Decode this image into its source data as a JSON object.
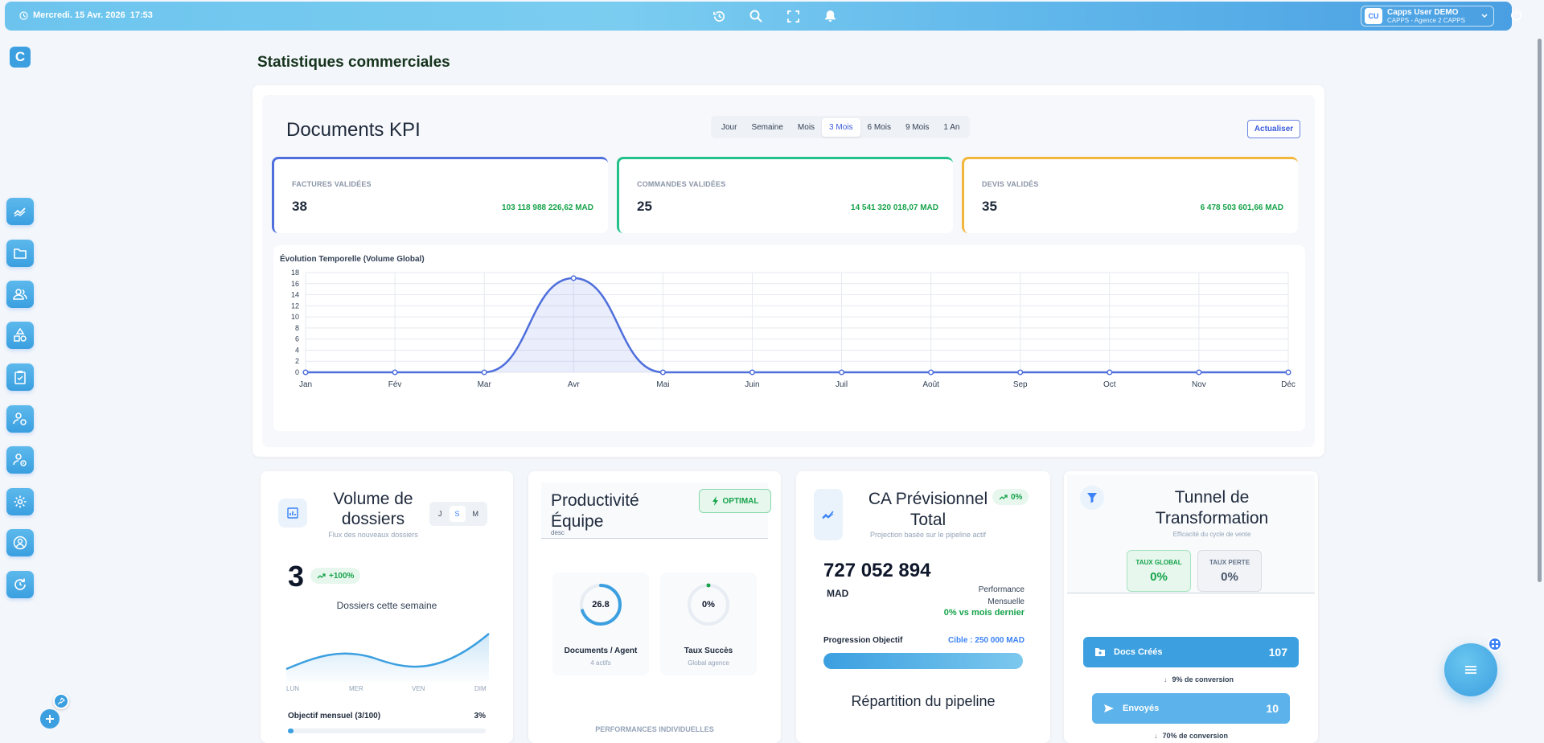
{
  "topbar": {
    "date": "Mercredi. 15 Avr. 2026",
    "time": "17:53",
    "icons": [
      "history-icon",
      "search-icon",
      "fullscreen-icon",
      "bell-icon"
    ],
    "user": {
      "initials": "CU",
      "name": "Capps User DEMO",
      "agency": "CAPPS - Agence 2 CAPPS"
    }
  },
  "sidebar": {
    "logo": "C",
    "items": [
      "chart-icon",
      "folder-icon",
      "users-icon",
      "shapes-icon",
      "clipboard-icon",
      "user-group-icon",
      "user-group-alt-icon",
      "settings-icon",
      "account-icon",
      "refresh-icon"
    ]
  },
  "page": {
    "title": "Statistiques commerciales"
  },
  "kpi": {
    "title": "Documents KPI",
    "periods": [
      "Jour",
      "Semaine",
      "Mois",
      "3 Mois",
      "6 Mois",
      "9 Mois",
      "1 An"
    ],
    "active_period": "3 Mois",
    "refresh_label": "Actualiser",
    "stats": [
      {
        "label": "FACTURES VALIDÉES",
        "count": "38",
        "amount": "103 118 988 226,62 MAD",
        "color": "#4f6fdc"
      },
      {
        "label": "COMMANDES VALIDÉES",
        "count": "25",
        "amount": "14 541 320 018,07 MAD",
        "color": "#22c08a"
      },
      {
        "label": "DEVIS VALIDÉS",
        "count": "35",
        "amount": "6 478 503 601,66 MAD",
        "color": "#f2b63c"
      }
    ]
  },
  "chart_data": {
    "type": "area",
    "title": "Évolution Temporelle (Volume Global)",
    "categories": [
      "Jan",
      "Fév",
      "Mar",
      "Avr",
      "Mai",
      "Juin",
      "Juil",
      "Août",
      "Sep",
      "Oct",
      "Nov",
      "Déc"
    ],
    "values": [
      0,
      0,
      0,
      17,
      0,
      0,
      0,
      0,
      0,
      0,
      0,
      0
    ],
    "ylim": [
      0,
      18
    ],
    "yticks": [
      0,
      2,
      4,
      6,
      8,
      10,
      12,
      14,
      16,
      18
    ],
    "grid": true,
    "color": "#4f6fdc"
  },
  "volume": {
    "title": "Volume de dossiers",
    "subtitle": "Flux des nouveaux dossiers",
    "toggles": [
      "J",
      "S",
      "M"
    ],
    "active_toggle": "S",
    "count": "3",
    "trend": "+100%",
    "caption": "Dossiers cette semaine",
    "days": [
      "LUN",
      "MER",
      "VEN",
      "DIM"
    ],
    "goal_label": "Objectif mensuel (3/100)",
    "goal_pct": "3%",
    "goal_fraction": 0.03
  },
  "productivity": {
    "title": "Productivité Équipe",
    "desc": "desc",
    "badge": "OPTIMAL",
    "metrics": [
      {
        "value": "26.8",
        "label": "Documents / Agent",
        "sub": "4 actifs",
        "fraction": 0.7
      },
      {
        "value": "0%",
        "label": "Taux Succès",
        "sub": "Global agence",
        "fraction": 0.0
      }
    ],
    "section": "PERFORMANCES INDIVIDUELLES"
  },
  "forecast": {
    "title": "CA Prévisionnel Total",
    "badge": "0%",
    "subtitle": "Projection basée sur le pipeline actif",
    "amount": "727 052 894",
    "currency": "MAD",
    "perf_label_1": "Performance",
    "perf_label_2": "Mensuelle",
    "vs": "0% vs mois dernier",
    "progress_label": "Progression Objectif",
    "target": "Cible : 250 000 MAD",
    "pipeline_title": "Répartition du pipeline"
  },
  "funnel": {
    "title": "Tunnel de Transformation",
    "subtitle": "Efficacité du cycle de vente",
    "global_label": "TAUX GLOBAL",
    "global_value": "0%",
    "loss_label": "TAUX PERTE",
    "loss_value": "0%",
    "steps": [
      {
        "label": "Docs Créés",
        "count": "107",
        "conversion": "9% de conversion"
      },
      {
        "label": "Envoyés",
        "count": "10",
        "conversion": "70% de conversion"
      }
    ]
  }
}
